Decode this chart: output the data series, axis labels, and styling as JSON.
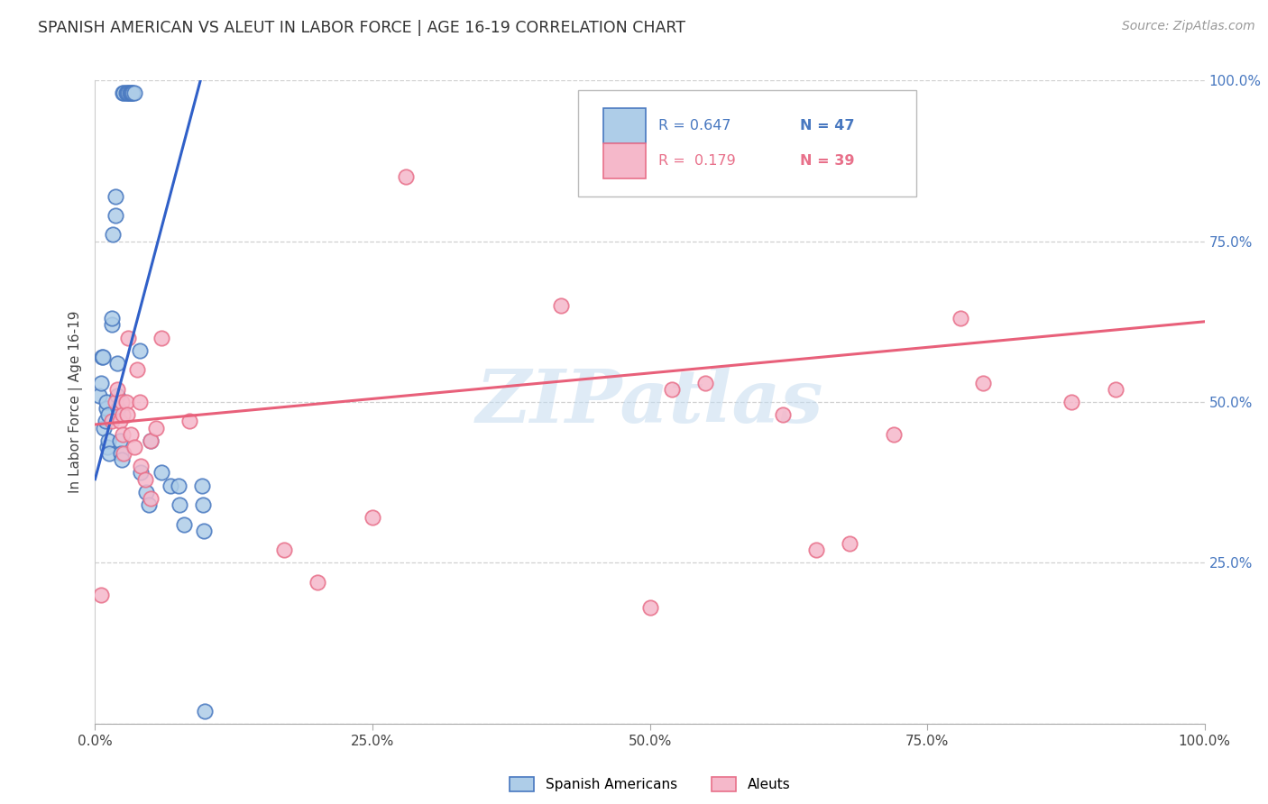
{
  "title": "SPANISH AMERICAN VS ALEUT IN LABOR FORCE | AGE 16-19 CORRELATION CHART",
  "source": "Source: ZipAtlas.com",
  "ylabel": "In Labor Force | Age 16-19",
  "xlim": [
    0.0,
    1.0
  ],
  "ylim": [
    0.0,
    1.0
  ],
  "xticks": [
    0.0,
    0.25,
    0.5,
    0.75,
    1.0
  ],
  "yticks": [
    0.0,
    0.25,
    0.5,
    0.75,
    1.0
  ],
  "xtick_labels": [
    "0.0%",
    "25.0%",
    "50.0%",
    "75.0%",
    "100.0%"
  ],
  "right_ytick_labels": [
    "",
    "25.0%",
    "50.0%",
    "75.0%",
    "100.0%"
  ],
  "blue_R": 0.647,
  "blue_N": 47,
  "pink_R": 0.179,
  "pink_N": 39,
  "blue_fill_color": "#aecde8",
  "blue_edge_color": "#4878c0",
  "pink_fill_color": "#f5b8ca",
  "pink_edge_color": "#e8708a",
  "blue_line_color": "#3060c8",
  "pink_line_color": "#e8607a",
  "watermark_text": "ZIPatlas",
  "legend_label_blue": "Spanish Americans",
  "legend_label_pink": "Aleuts",
  "blue_x": [
    0.025,
    0.026,
    0.028,
    0.029,
    0.03,
    0.031,
    0.032,
    0.033,
    0.034,
    0.035,
    0.004,
    0.005,
    0.006,
    0.007,
    0.008,
    0.009,
    0.01,
    0.01,
    0.011,
    0.012,
    0.012,
    0.013,
    0.015,
    0.015,
    0.016,
    0.018,
    0.018,
    0.02,
    0.02,
    0.021,
    0.022,
    0.023,
    0.024,
    0.04,
    0.041,
    0.046,
    0.048,
    0.05,
    0.06,
    0.068,
    0.075,
    0.076,
    0.08,
    0.096,
    0.097,
    0.098,
    0.099
  ],
  "blue_y": [
    0.98,
    0.98,
    0.98,
    0.98,
    0.98,
    0.98,
    0.98,
    0.98,
    0.98,
    0.98,
    0.51,
    0.53,
    0.57,
    0.57,
    0.46,
    0.47,
    0.49,
    0.5,
    0.43,
    0.48,
    0.44,
    0.42,
    0.62,
    0.63,
    0.76,
    0.79,
    0.82,
    0.56,
    0.51,
    0.49,
    0.44,
    0.42,
    0.41,
    0.58,
    0.39,
    0.36,
    0.34,
    0.44,
    0.39,
    0.37,
    0.37,
    0.34,
    0.31,
    0.37,
    0.34,
    0.3,
    0.02
  ],
  "pink_x": [
    0.005,
    0.015,
    0.018,
    0.02,
    0.022,
    0.024,
    0.025,
    0.025,
    0.026,
    0.028,
    0.029,
    0.03,
    0.032,
    0.035,
    0.038,
    0.04,
    0.041,
    0.045,
    0.05,
    0.05,
    0.055,
    0.06,
    0.085,
    0.17,
    0.2,
    0.25,
    0.28,
    0.42,
    0.5,
    0.52,
    0.55,
    0.62,
    0.65,
    0.68,
    0.72,
    0.78,
    0.8,
    0.88,
    0.92
  ],
  "pink_y": [
    0.2,
    0.47,
    0.5,
    0.52,
    0.47,
    0.5,
    0.48,
    0.45,
    0.42,
    0.5,
    0.48,
    0.6,
    0.45,
    0.43,
    0.55,
    0.5,
    0.4,
    0.38,
    0.35,
    0.44,
    0.46,
    0.6,
    0.47,
    0.27,
    0.22,
    0.32,
    0.85,
    0.65,
    0.18,
    0.52,
    0.53,
    0.48,
    0.27,
    0.28,
    0.45,
    0.63,
    0.53,
    0.5,
    0.52
  ],
  "blue_line_x": [
    0.0,
    0.098
  ],
  "blue_line_y": [
    0.38,
    1.02
  ],
  "pink_line_x": [
    0.0,
    1.0
  ],
  "pink_line_y": [
    0.465,
    0.625
  ]
}
